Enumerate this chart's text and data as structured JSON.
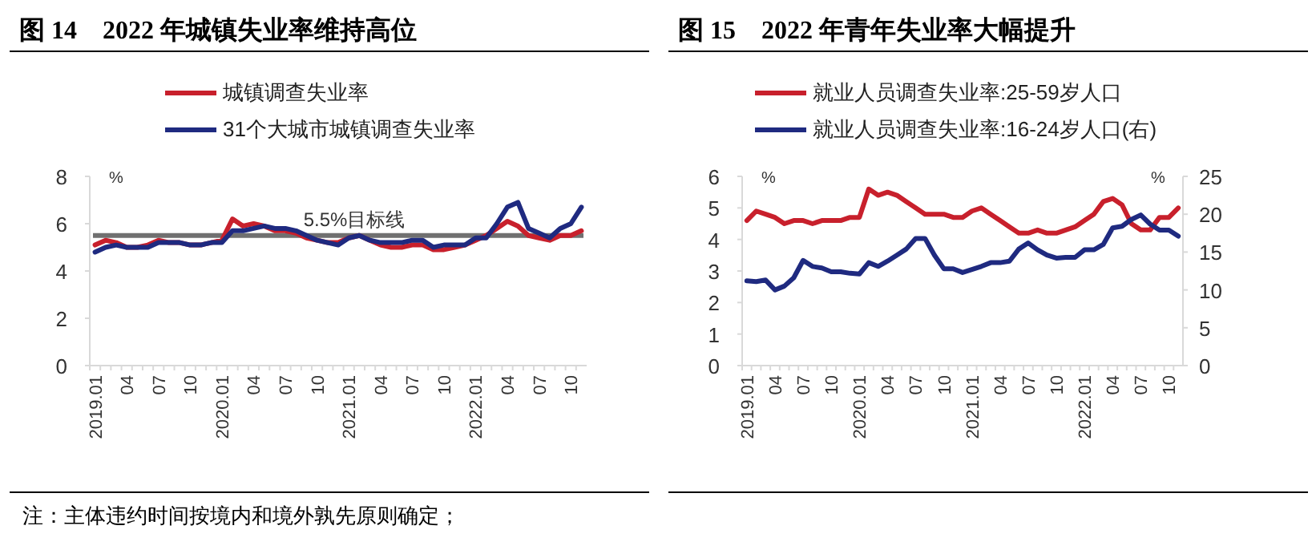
{
  "chart_data": [
    {
      "type": "line",
      "title": "图 14　2022 年城镇失业率维持高位",
      "ylabel": "%",
      "legend": "top",
      "categories": [
        "2019.01",
        null,
        null,
        "04",
        null,
        null,
        "07",
        null,
        null,
        "10",
        null,
        null,
        "2020.01",
        null,
        null,
        "04",
        null,
        null,
        "07",
        null,
        null,
        "10",
        null,
        null,
        "2021.01",
        null,
        null,
        "04",
        null,
        null,
        "07",
        null,
        null,
        "10",
        null,
        null,
        "2022.01",
        null,
        null,
        "04",
        null,
        null,
        "07",
        null,
        null,
        "10",
        null
      ],
      "ylim": [
        0,
        8
      ],
      "yticks": [
        0,
        2,
        4,
        6,
        8
      ],
      "series": [
        {
          "name": "城镇调查失业率",
          "color": "#c8202c",
          "values": [
            5.1,
            5.3,
            5.2,
            5.0,
            5.0,
            5.1,
            5.3,
            5.2,
            5.2,
            5.1,
            5.1,
            5.2,
            5.3,
            6.2,
            5.9,
            6.0,
            5.9,
            5.7,
            5.7,
            5.6,
            5.4,
            5.3,
            5.2,
            5.2,
            5.4,
            5.5,
            5.3,
            5.1,
            5.0,
            5.0,
            5.1,
            5.1,
            4.9,
            4.9,
            5.0,
            5.1,
            5.3,
            5.5,
            5.8,
            6.1,
            5.9,
            5.5,
            5.4,
            5.3,
            5.5,
            5.5,
            5.7
          ]
        },
        {
          "name": "31个大城市城镇调查失业率",
          "color": "#1f2a80",
          "values": [
            4.8,
            5.0,
            5.1,
            5.0,
            5.0,
            5.0,
            5.2,
            5.2,
            5.2,
            5.1,
            5.1,
            5.2,
            5.2,
            5.7,
            5.7,
            5.8,
            5.9,
            5.8,
            5.8,
            5.7,
            5.5,
            5.3,
            5.2,
            5.1,
            5.4,
            5.5,
            5.3,
            5.2,
            5.2,
            5.2,
            5.3,
            5.3,
            5.0,
            5.1,
            5.1,
            5.1,
            5.4,
            5.4,
            6.0,
            6.7,
            6.9,
            5.8,
            5.6,
            5.4,
            5.8,
            6.0,
            6.7
          ]
        }
      ],
      "ref_lines": [
        {
          "axis": "y",
          "value": 5.5,
          "label": "5.5%目标线",
          "color": "#707070"
        }
      ],
      "annotations": [
        "注：主体违约时间按境内和境外孰先原则确定；"
      ]
    },
    {
      "type": "line",
      "title": "图 15　2022 年青年失业率大幅提升",
      "ylabel": "%",
      "y2label": "%",
      "legend": "top",
      "categories": [
        "2019.01",
        null,
        null,
        "04",
        null,
        null,
        "07",
        null,
        null,
        "10",
        null,
        null,
        "2020.01",
        null,
        null,
        "04",
        null,
        null,
        "07",
        null,
        null,
        "10",
        null,
        null,
        "2021.01",
        null,
        null,
        "04",
        null,
        null,
        "07",
        null,
        null,
        "10",
        null,
        null,
        "2022.01",
        null,
        null,
        "04",
        null,
        null,
        "07",
        null,
        null,
        "10",
        null
      ],
      "ylim": [
        0,
        6
      ],
      "yticks": [
        0,
        1,
        2,
        3,
        4,
        5,
        6
      ],
      "y2lim": [
        0,
        25
      ],
      "y2ticks": [
        0,
        5,
        10,
        15,
        20,
        25
      ],
      "series": [
        {
          "name": "就业人员调查失业率:25-59岁人口",
          "color": "#c8202c",
          "values": [
            4.6,
            4.9,
            4.8,
            4.7,
            4.5,
            4.6,
            4.6,
            4.5,
            4.6,
            4.6,
            4.6,
            4.7,
            4.7,
            5.6,
            5.4,
            5.5,
            5.4,
            5.2,
            5.0,
            4.8,
            4.8,
            4.8,
            4.7,
            4.7,
            4.9,
            5.0,
            4.8,
            4.6,
            4.4,
            4.2,
            4.2,
            4.3,
            4.2,
            4.2,
            4.3,
            4.4,
            4.6,
            4.8,
            5.2,
            5.3,
            5.1,
            4.5,
            4.3,
            4.3,
            4.7,
            4.7,
            5.0
          ]
        },
        {
          "name": "就业人员调查失业率:16-24岁人口(右)",
          "color": "#1f2a80",
          "axis": "y2",
          "values": [
            11.2,
            11.1,
            11.3,
            10.0,
            10.5,
            11.6,
            13.9,
            13.1,
            12.9,
            12.4,
            12.4,
            12.2,
            12.1,
            13.6,
            13.1,
            13.8,
            14.6,
            15.4,
            16.8,
            16.8,
            14.6,
            12.8,
            12.8,
            12.3,
            12.7,
            13.1,
            13.6,
            13.6,
            13.8,
            15.4,
            16.2,
            15.3,
            14.6,
            14.2,
            14.3,
            14.3,
            15.3,
            15.3,
            16.0,
            18.2,
            18.4,
            19.3,
            19.9,
            18.7,
            17.9,
            17.9,
            17.1
          ]
        }
      ]
    }
  ]
}
